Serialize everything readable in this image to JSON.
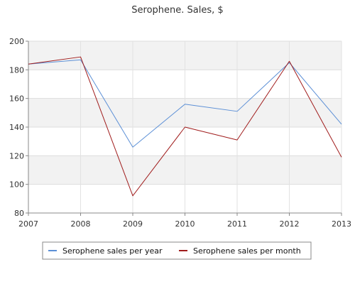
{
  "chart_data": {
    "type": "line",
    "title": "Serophene. Sales, $",
    "xlabel": "",
    "ylabel": "",
    "x": [
      "2007",
      "2008",
      "2009",
      "2010",
      "2011",
      "2012",
      "2013"
    ],
    "ylim": [
      80,
      200
    ],
    "yticks": [
      "80",
      "100",
      "120",
      "140",
      "160",
      "180",
      "200"
    ],
    "grid": true,
    "legend_position": "bottom",
    "series": [
      {
        "name": "Serophene sales per year",
        "color": "#5b8fd6",
        "values": [
          184,
          187,
          126,
          156,
          151,
          185,
          142
        ]
      },
      {
        "name": "Serophene sales per month",
        "color": "#a01c1c",
        "values": [
          184,
          189,
          92,
          140,
          131,
          186,
          119
        ]
      }
    ]
  }
}
